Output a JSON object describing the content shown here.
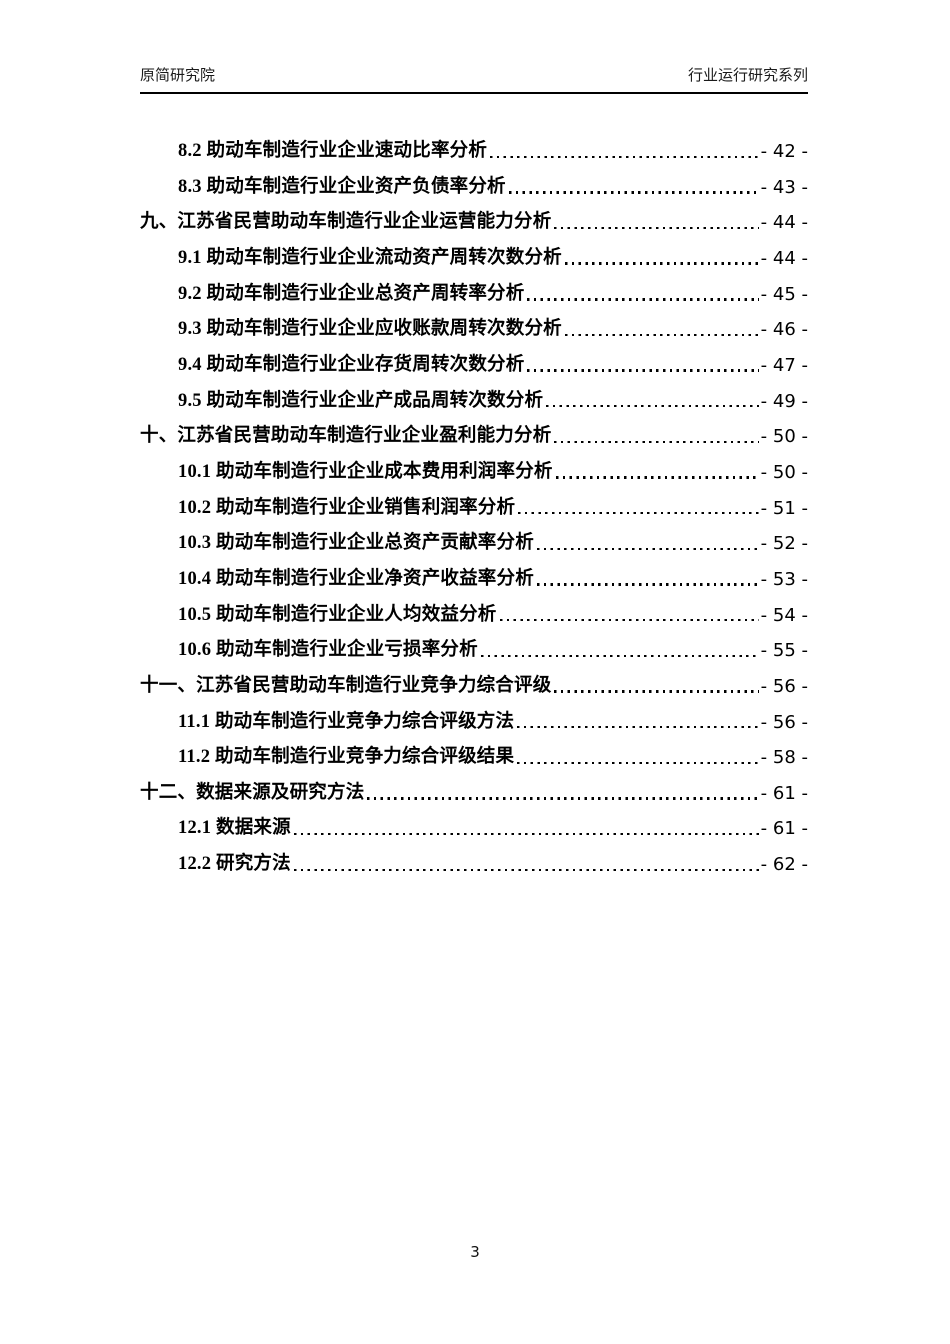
{
  "header": {
    "left": "原简研究院",
    "right": "行业运行研究系列"
  },
  "toc": {
    "entries": [
      {
        "level": 2,
        "title": "8.2 助动车制造行业企业速动比率分析",
        "page": "- 42 -"
      },
      {
        "level": 2,
        "title": "8.3 助动车制造行业企业资产负债率分析",
        "page": "- 43 -"
      },
      {
        "level": 1,
        "title": "九、江苏省民营助动车制造行业企业运营能力分析",
        "page": "- 44 -"
      },
      {
        "level": 2,
        "title": "9.1 助动车制造行业企业流动资产周转次数分析",
        "page": "- 44 -"
      },
      {
        "level": 2,
        "title": "9.2 助动车制造行业企业总资产周转率分析",
        "page": "- 45 -"
      },
      {
        "level": 2,
        "title": "9.3 助动车制造行业企业应收账款周转次数分析",
        "page": "- 46 -"
      },
      {
        "level": 2,
        "title": "9.4 助动车制造行业企业存货周转次数分析",
        "page": "- 47 -"
      },
      {
        "level": 2,
        "title": "9.5 助动车制造行业企业产成品周转次数分析",
        "page": "- 49 -"
      },
      {
        "level": 1,
        "title": "十、江苏省民营助动车制造行业企业盈利能力分析",
        "page": "- 50 -"
      },
      {
        "level": 2,
        "title": "10.1 助动车制造行业企业成本费用利润率分析",
        "page": "- 50 -"
      },
      {
        "level": 2,
        "title": "10.2 助动车制造行业企业销售利润率分析",
        "page": "- 51 -"
      },
      {
        "level": 2,
        "title": "10.3 助动车制造行业企业总资产贡献率分析",
        "page": "- 52 -"
      },
      {
        "level": 2,
        "title": "10.4 助动车制造行业企业净资产收益率分析",
        "page": "- 53 -"
      },
      {
        "level": 2,
        "title": "10.5 助动车制造行业企业人均效益分析",
        "page": "- 54 -"
      },
      {
        "level": 2,
        "title": "10.6 助动车制造行业企业亏损率分析",
        "page": "- 55 -"
      },
      {
        "level": 1,
        "title": "十一、江苏省民营助动车制造行业竞争力综合评级",
        "page": "- 56 -"
      },
      {
        "level": 2,
        "title": "11.1 助动车制造行业竞争力综合评级方法",
        "page": "- 56 -"
      },
      {
        "level": 2,
        "title": "11.2 助动车制造行业竞争力综合评级结果",
        "page": "- 58 -"
      },
      {
        "level": 1,
        "title": "十二、数据来源及研究方法",
        "page": "- 61 -"
      },
      {
        "level": 2,
        "title": "12.1 数据来源",
        "page": "- 61 -"
      },
      {
        "level": 2,
        "title": "12.2 研究方法",
        "page": "- 62 -"
      }
    ]
  },
  "footer": {
    "page_number": "3"
  }
}
